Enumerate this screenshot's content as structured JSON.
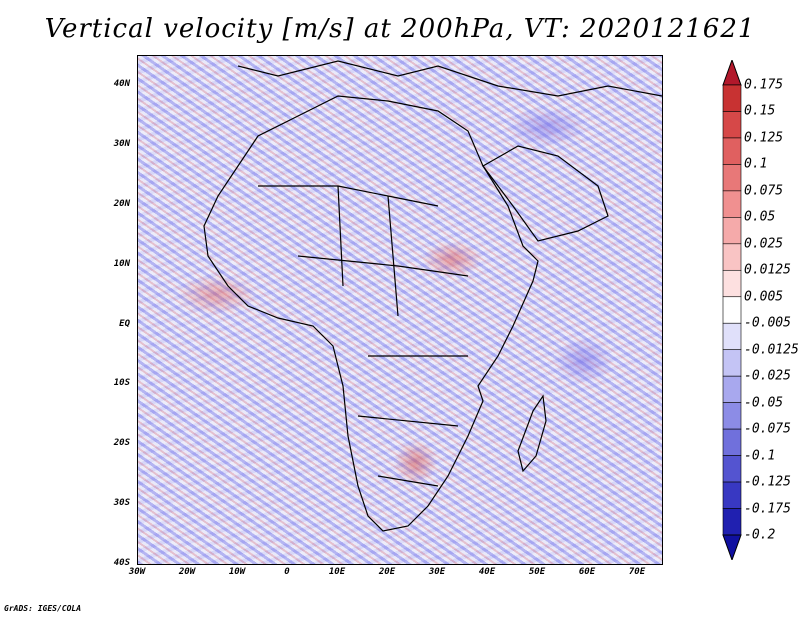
{
  "title": "Vertical velocity [m/s] at 200hPa, VT: 2020121621",
  "footer": "GrADS: IGES/COLA",
  "map": {
    "lat_labels": [
      "40N",
      "30N",
      "20N",
      "10N",
      "EQ",
      "10S",
      "20S",
      "30S",
      "40S"
    ],
    "lon_labels": [
      "30W",
      "20W",
      "10W",
      "0",
      "10E",
      "20E",
      "30E",
      "40E",
      "50E",
      "60E",
      "70E"
    ],
    "lat_range": [
      -40,
      45
    ],
    "lon_range": [
      -30,
      75
    ]
  },
  "colorbar": {
    "labels": [
      "0.175",
      "0.15",
      "0.125",
      "0.1",
      "0.075",
      "0.05",
      "0.025",
      "0.0125",
      "0.005",
      "-0.005",
      "-0.0125",
      "-0.025",
      "-0.05",
      "-0.075",
      "-0.1",
      "-0.125",
      "-0.175",
      "-0.2"
    ],
    "colors": [
      "#b2182b",
      "#c83232",
      "#d64848",
      "#e06060",
      "#e87878",
      "#f09090",
      "#f5aaaa",
      "#f9c4c4",
      "#fde0e0",
      "#ffffff",
      "#e0e0fa",
      "#c4c4f5",
      "#a8a8ee",
      "#8c8ce6",
      "#7070dc",
      "#5454d0",
      "#3838c2",
      "#2020b0",
      "#1010a0"
    ]
  }
}
